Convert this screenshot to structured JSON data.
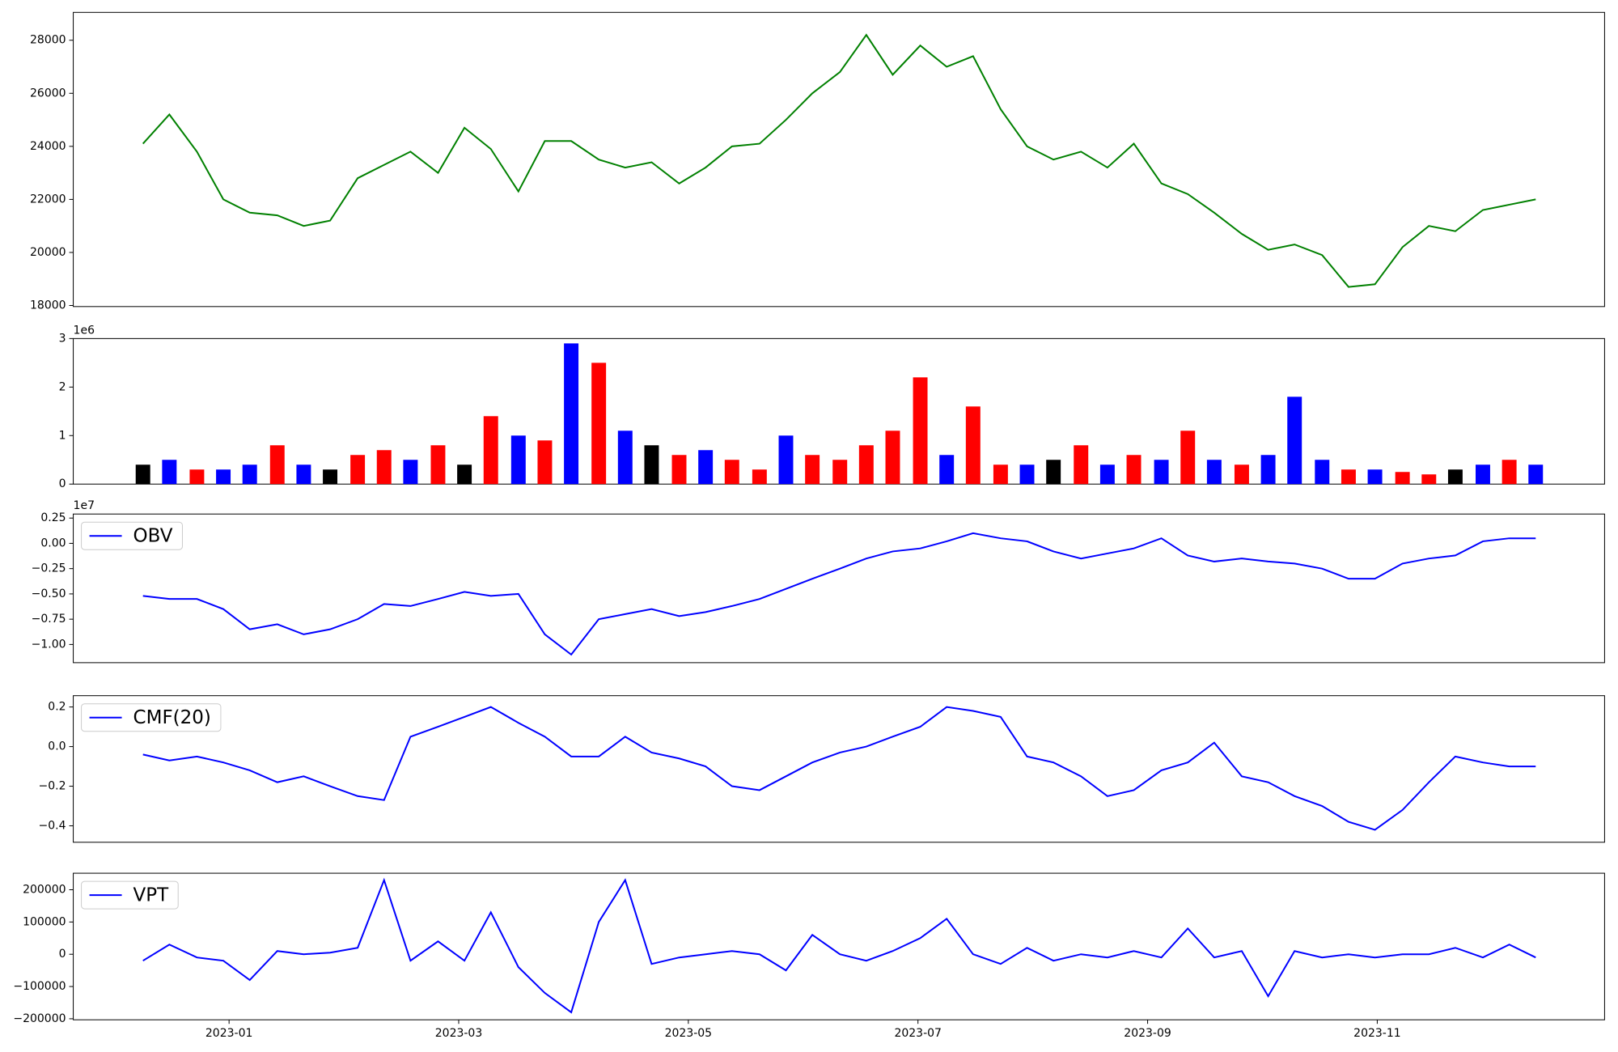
{
  "chart_data": [
    {
      "type": "line",
      "legend": false,
      "x": [
        -0.75,
        -0.52,
        -0.28,
        -0.05,
        0.18,
        0.42,
        0.65,
        0.88,
        1.12,
        1.35,
        1.58,
        1.82,
        2.05,
        2.28,
        2.52,
        2.75,
        2.98,
        3.22,
        3.45,
        3.68,
        3.92,
        4.15,
        4.38,
        4.62,
        4.85,
        5.08,
        5.32,
        5.55,
        5.78,
        6.02,
        6.25,
        6.48,
        6.72,
        6.95,
        7.18,
        7.42,
        7.65,
        7.88,
        8.12,
        8.35,
        8.58,
        8.82,
        9.05,
        9.28,
        9.52,
        9.75,
        9.98,
        10.22,
        10.45,
        10.68,
        10.92,
        11.15,
        11.38
      ],
      "xlim": [
        -1.357,
        11.98
      ],
      "series": [
        {
          "color": "#008000",
          "values": [
            24100,
            25200,
            23800,
            22000,
            21500,
            21400,
            21000,
            21200,
            22800,
            23300,
            23800,
            23000,
            24700,
            23900,
            22300,
            24200,
            24200,
            23500,
            23200,
            23400,
            22600,
            23200,
            24000,
            24100,
            25000,
            26000,
            26800,
            28200,
            26700,
            27800,
            27000,
            27400,
            25400,
            24000,
            23500,
            23800,
            23200,
            24100,
            22600,
            22200,
            21500,
            20700,
            20100,
            20300,
            19900,
            18700,
            18800,
            20200,
            21000,
            20800,
            21600,
            21800,
            22000
          ]
        }
      ],
      "ylim": [
        17960,
        29050
      ],
      "yticks": [
        18000,
        20000,
        22000,
        24000,
        26000,
        28000
      ]
    },
    {
      "type": "bar",
      "offset_label": "1e6",
      "x": [
        -0.75,
        -0.52,
        -0.28,
        -0.05,
        0.18,
        0.42,
        0.65,
        0.88,
        1.12,
        1.35,
        1.58,
        1.82,
        2.05,
        2.28,
        2.52,
        2.75,
        2.98,
        3.22,
        3.45,
        3.68,
        3.92,
        4.15,
        4.38,
        4.62,
        4.85,
        5.08,
        5.32,
        5.55,
        5.78,
        6.02,
        6.25,
        6.48,
        6.72,
        6.95,
        7.18,
        7.42,
        7.65,
        7.88,
        8.12,
        8.35,
        8.58,
        8.82,
        9.05,
        9.28,
        9.52,
        9.75,
        9.98,
        10.22,
        10.45,
        10.68,
        10.92,
        11.15,
        11.38
      ],
      "xlim": [
        -1.357,
        11.98
      ],
      "values": [
        0.4,
        0.5,
        0.3,
        0.3,
        0.4,
        0.8,
        0.4,
        0.3,
        0.6,
        0.7,
        0.5,
        0.8,
        0.4,
        1.4,
        1.0,
        0.9,
        2.9,
        2.5,
        1.1,
        0.8,
        0.6,
        0.7,
        0.5,
        0.3,
        1.0,
        0.6,
        0.5,
        0.8,
        1.1,
        2.2,
        0.6,
        1.6,
        0.4,
        0.4,
        0.5,
        0.8,
        0.4,
        0.6,
        0.5,
        1.1,
        0.5,
        0.4,
        0.6,
        1.8,
        0.5,
        0.3,
        0.3,
        0.25,
        0.2,
        0.3,
        0.4,
        0.5,
        0.4
      ],
      "colors": [
        "#000000",
        "#0000ff",
        "#ff0000",
        "#0000ff",
        "#0000ff",
        "#ff0000",
        "#0000ff",
        "#000000",
        "#ff0000",
        "#ff0000",
        "#0000ff",
        "#ff0000",
        "#000000",
        "#ff0000",
        "#0000ff",
        "#ff0000",
        "#0000ff",
        "#ff0000",
        "#0000ff",
        "#000000",
        "#ff0000",
        "#0000ff",
        "#ff0000",
        "#ff0000",
        "#0000ff",
        "#ff0000",
        "#ff0000",
        "#ff0000",
        "#ff0000",
        "#ff0000",
        "#0000ff",
        "#ff0000",
        "#ff0000",
        "#0000ff",
        "#000000",
        "#ff0000",
        "#0000ff",
        "#ff0000",
        "#0000ff",
        "#ff0000",
        "#0000ff",
        "#ff0000",
        "#0000ff",
        "#0000ff",
        "#0000ff",
        "#ff0000",
        "#0000ff",
        "#ff0000",
        "#ff0000",
        "#000000",
        "#0000ff",
        "#ff0000",
        "#0000ff"
      ],
      "ylim": [
        0,
        3
      ],
      "yticks": [
        0,
        1,
        2,
        3
      ]
    },
    {
      "type": "line",
      "legend": "upper left",
      "offset_label": "1e7",
      "x": [
        -0.75,
        -0.52,
        -0.28,
        -0.05,
        0.18,
        0.42,
        0.65,
        0.88,
        1.12,
        1.35,
        1.58,
        1.82,
        2.05,
        2.28,
        2.52,
        2.75,
        2.98,
        3.22,
        3.45,
        3.68,
        3.92,
        4.15,
        4.38,
        4.62,
        4.85,
        5.08,
        5.32,
        5.55,
        5.78,
        6.02,
        6.25,
        6.48,
        6.72,
        6.95,
        7.18,
        7.42,
        7.65,
        7.88,
        8.12,
        8.35,
        8.58,
        8.82,
        9.05,
        9.28,
        9.52,
        9.75,
        9.98,
        10.22,
        10.45,
        10.68,
        10.92,
        11.15,
        11.38
      ],
      "xlim": [
        -1.357,
        11.98
      ],
      "series": [
        {
          "name": "OBV",
          "color": "#0000ff",
          "values": [
            -0.52,
            -0.55,
            -0.55,
            -0.65,
            -0.85,
            -0.8,
            -0.9,
            -0.85,
            -0.75,
            -0.6,
            -0.62,
            -0.55,
            -0.48,
            -0.52,
            -0.5,
            -0.9,
            -1.1,
            -0.75,
            -0.7,
            -0.65,
            -0.72,
            -0.68,
            -0.62,
            -0.55,
            -0.45,
            -0.35,
            -0.25,
            -0.15,
            -0.08,
            -0.05,
            0.02,
            0.1,
            0.05,
            0.02,
            -0.08,
            -0.15,
            -0.1,
            -0.05,
            0.05,
            -0.12,
            -0.18,
            -0.15,
            -0.18,
            -0.2,
            -0.25,
            -0.35,
            -0.35,
            -0.2,
            -0.15,
            -0.12,
            0.02,
            0.05,
            0.05
          ]
        }
      ],
      "ylim": [
        -1.18,
        0.29
      ],
      "yticks": [
        {
          "value": -1.0,
          "label": "−1.00"
        },
        {
          "value": -0.75,
          "label": "−0.75"
        },
        {
          "value": -0.5,
          "label": "−0.50"
        },
        {
          "value": -0.25,
          "label": "−0.25"
        },
        {
          "value": 0,
          "label": "0.00"
        },
        {
          "value": 0.25,
          "label": "0.25"
        }
      ]
    },
    {
      "type": "line",
      "legend": "upper left",
      "x": [
        -0.75,
        -0.52,
        -0.28,
        -0.05,
        0.18,
        0.42,
        0.65,
        0.88,
        1.12,
        1.35,
        1.58,
        1.82,
        2.05,
        2.28,
        2.52,
        2.75,
        2.98,
        3.22,
        3.45,
        3.68,
        3.92,
        4.15,
        4.38,
        4.62,
        4.85,
        5.08,
        5.32,
        5.55,
        5.78,
        6.02,
        6.25,
        6.48,
        6.72,
        6.95,
        7.18,
        7.42,
        7.65,
        7.88,
        8.12,
        8.35,
        8.58,
        8.82,
        9.05,
        9.28,
        9.52,
        9.75,
        9.98,
        10.22,
        10.45,
        10.68,
        10.92,
        11.15,
        11.38
      ],
      "xlim": [
        -1.357,
        11.98
      ],
      "series": [
        {
          "name": "CMF(20)",
          "color": "#0000ff",
          "values": [
            -0.04,
            -0.07,
            -0.05,
            -0.08,
            -0.12,
            -0.18,
            -0.15,
            -0.2,
            -0.25,
            -0.27,
            0.05,
            0.1,
            0.15,
            0.2,
            0.12,
            0.05,
            -0.05,
            -0.05,
            0.05,
            -0.03,
            -0.06,
            -0.1,
            -0.2,
            -0.22,
            -0.15,
            -0.08,
            -0.03,
            0.0,
            0.05,
            0.1,
            0.2,
            0.18,
            0.15,
            -0.05,
            -0.08,
            -0.15,
            -0.25,
            -0.22,
            -0.12,
            -0.08,
            0.02,
            -0.15,
            -0.18,
            -0.25,
            -0.3,
            -0.38,
            -0.42,
            -0.32,
            -0.18,
            -0.05,
            -0.08,
            -0.1,
            -0.1
          ]
        }
      ],
      "ylim": [
        -0.483,
        0.257
      ],
      "yticks": [
        {
          "value": -0.4,
          "label": "−0.4"
        },
        {
          "value": -0.2,
          "label": "−0.2"
        },
        {
          "value": 0,
          "label": "0.0"
        },
        {
          "value": 0.2,
          "label": "0.2"
        }
      ]
    },
    {
      "type": "line",
      "legend": "upper left",
      "x": [
        -0.75,
        -0.52,
        -0.28,
        -0.05,
        0.18,
        0.42,
        0.65,
        0.88,
        1.12,
        1.35,
        1.58,
        1.82,
        2.05,
        2.28,
        2.52,
        2.75,
        2.98,
        3.22,
        3.45,
        3.68,
        3.92,
        4.15,
        4.38,
        4.62,
        4.85,
        5.08,
        5.32,
        5.55,
        5.78,
        6.02,
        6.25,
        6.48,
        6.72,
        6.95,
        7.18,
        7.42,
        7.65,
        7.88,
        8.12,
        8.35,
        8.58,
        8.82,
        9.05,
        9.28,
        9.52,
        9.75,
        9.98,
        10.22,
        10.45,
        10.68,
        10.92,
        11.15,
        11.38
      ],
      "xlim": [
        -1.357,
        11.98
      ],
      "xticks": [
        {
          "value": 0,
          "label": "2023-01"
        },
        {
          "value": 2,
          "label": "2023-03"
        },
        {
          "value": 4,
          "label": "2023-05"
        },
        {
          "value": 6,
          "label": "2023-07"
        },
        {
          "value": 8,
          "label": "2023-09"
        },
        {
          "value": 10,
          "label": "2023-11"
        }
      ],
      "series": [
        {
          "name": "VPT",
          "color": "#0000ff",
          "values": [
            -20000,
            30000,
            -10000,
            -20000,
            -80000,
            10000,
            0,
            5000,
            20000,
            230000,
            -20000,
            40000,
            -20000,
            130000,
            -40000,
            -120000,
            -180000,
            100000,
            230000,
            -30000,
            -10000,
            0,
            10000,
            0,
            -50000,
            60000,
            0,
            -20000,
            10000,
            50000,
            110000,
            0,
            -30000,
            20000,
            -20000,
            0,
            -10000,
            10000,
            -10000,
            80000,
            -10000,
            10000,
            -130000,
            10000,
            -10000,
            0,
            -10000,
            0,
            0,
            20000,
            -10000,
            30000,
            -10000
          ]
        }
      ],
      "ylim": [
        -203200,
        251200
      ],
      "yticks": [
        {
          "value": -200000,
          "label": "−200000"
        },
        {
          "value": -100000,
          "label": "−100000"
        },
        0,
        100000,
        200000
      ]
    }
  ]
}
